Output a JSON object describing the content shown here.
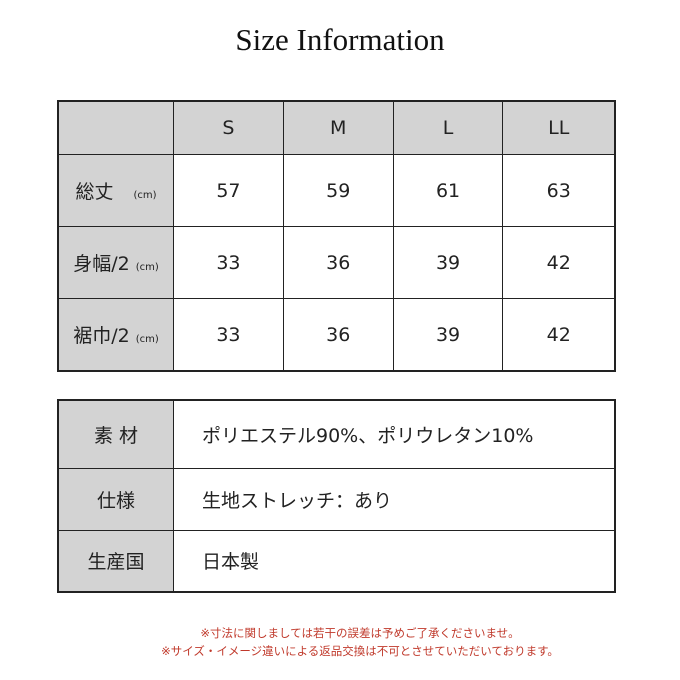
{
  "title": "Size Information",
  "size_table": {
    "headers": [
      "",
      "S",
      "M",
      "L",
      "LL"
    ],
    "unit": "(cm)",
    "rows": [
      {
        "label": "総丈",
        "values": [
          "57",
          "59",
          "61",
          "63"
        ]
      },
      {
        "label": "身幅/2",
        "values": [
          "33",
          "36",
          "39",
          "42"
        ]
      },
      {
        "label": "裾巾/2",
        "values": [
          "33",
          "36",
          "39",
          "42"
        ]
      }
    ]
  },
  "spec_table": [
    {
      "label": "素 材",
      "value": "ポリエステル90%、ポリウレタン10%"
    },
    {
      "label": "仕様",
      "value": "生地ストレッチ：あり"
    },
    {
      "label": "生産国",
      "value": "日本製"
    }
  ],
  "notes": [
    "※寸法に関しましては若干の誤差は予めご了承くださいませ。",
    "※サイズ・イメージ違いによる返品交換は不可とさせていただいております。"
  ],
  "colors": {
    "header_bg": "#d3d3d3",
    "note": "#c0392b"
  }
}
